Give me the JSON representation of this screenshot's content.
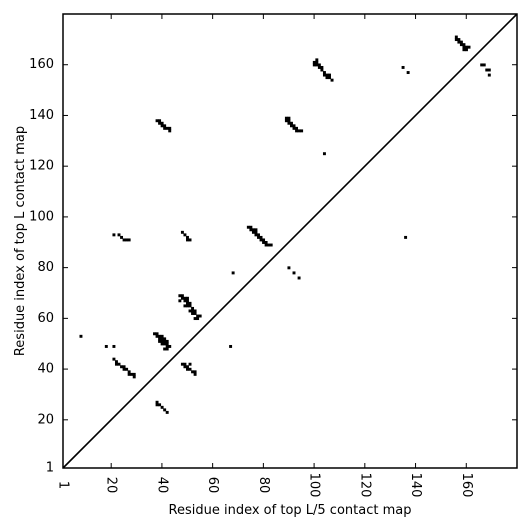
{
  "chart_data": {
    "type": "scatter",
    "title": "",
    "xlabel": "Residue index of top L/5 contact map",
    "ylabel": "Residue index of top L contact map",
    "xlim": [
      1,
      180
    ],
    "ylim": [
      1,
      180
    ],
    "xticks": [
      1,
      20,
      40,
      60,
      80,
      100,
      120,
      140,
      160
    ],
    "yticks": [
      1,
      20,
      40,
      60,
      80,
      100,
      120,
      140,
      160
    ],
    "xtick_labels": [
      "1",
      "20",
      "40",
      "60",
      "80",
      "100",
      "120",
      "140",
      "160"
    ],
    "ytick_labels": [
      "1",
      "20",
      "40",
      "60",
      "80",
      "100",
      "120",
      "140",
      "160"
    ],
    "xtick_rotation": 90,
    "diagonal": true,
    "grid": false,
    "marker": "square",
    "points": [
      [
        8,
        53
      ],
      [
        18,
        49
      ],
      [
        21,
        49
      ],
      [
        21,
        93
      ],
      [
        23,
        93
      ],
      [
        24,
        92
      ],
      [
        25,
        91
      ],
      [
        26,
        91
      ],
      [
        27,
        91
      ],
      [
        21,
        44
      ],
      [
        22,
        43
      ],
      [
        22,
        42
      ],
      [
        23,
        42
      ],
      [
        24,
        41
      ],
      [
        25,
        41
      ],
      [
        25,
        40
      ],
      [
        26,
        40
      ],
      [
        27,
        39
      ],
      [
        27,
        38
      ],
      [
        28,
        38
      ],
      [
        29,
        38
      ],
      [
        29,
        37
      ],
      [
        37,
        54
      ],
      [
        38,
        54
      ],
      [
        38,
        53
      ],
      [
        39,
        53
      ],
      [
        39,
        52
      ],
      [
        40,
        53
      ],
      [
        40,
        52
      ],
      [
        41,
        52
      ],
      [
        39,
        51
      ],
      [
        40,
        51
      ],
      [
        41,
        51
      ],
      [
        40,
        50
      ],
      [
        41,
        50
      ],
      [
        42,
        51
      ],
      [
        42,
        50
      ],
      [
        42,
        49
      ],
      [
        43,
        49
      ],
      [
        41,
        48
      ],
      [
        42,
        48
      ],
      [
        48,
        42
      ],
      [
        49,
        42
      ],
      [
        49,
        41
      ],
      [
        50,
        41
      ],
      [
        50,
        40
      ],
      [
        51,
        40
      ],
      [
        51,
        42
      ],
      [
        52,
        39
      ],
      [
        53,
        39
      ],
      [
        53,
        38
      ],
      [
        38,
        27
      ],
      [
        38,
        26
      ],
      [
        39,
        26
      ],
      [
        40,
        25
      ],
      [
        41,
        24
      ],
      [
        42,
        23
      ],
      [
        38,
        138
      ],
      [
        39,
        138
      ],
      [
        39,
        137
      ],
      [
        40,
        137
      ],
      [
        40,
        136
      ],
      [
        41,
        136
      ],
      [
        41,
        135
      ],
      [
        42,
        135
      ],
      [
        43,
        135
      ],
      [
        43,
        134
      ],
      [
        47,
        69
      ],
      [
        48,
        69
      ],
      [
        48,
        68
      ],
      [
        49,
        68
      ],
      [
        49,
        67
      ],
      [
        50,
        68
      ],
      [
        50,
        67
      ],
      [
        47,
        67
      ],
      [
        50,
        66
      ],
      [
        51,
        66
      ],
      [
        49,
        65
      ],
      [
        50,
        65
      ],
      [
        51,
        65
      ],
      [
        52,
        64
      ],
      [
        51,
        63
      ],
      [
        52,
        63
      ],
      [
        53,
        63
      ],
      [
        52,
        62
      ],
      [
        53,
        62
      ],
      [
        54,
        61
      ],
      [
        53,
        60
      ],
      [
        54,
        60
      ],
      [
        55,
        61
      ],
      [
        48,
        94
      ],
      [
        49,
        93
      ],
      [
        50,
        92
      ],
      [
        50,
        91
      ],
      [
        51,
        91
      ],
      [
        67,
        49
      ],
      [
        68,
        78
      ],
      [
        74,
        96
      ],
      [
        75,
        96
      ],
      [
        75,
        95
      ],
      [
        76,
        95
      ],
      [
        77,
        95
      ],
      [
        77,
        94
      ],
      [
        76,
        94
      ],
      [
        77,
        93
      ],
      [
        78,
        93
      ],
      [
        78,
        92
      ],
      [
        79,
        92
      ],
      [
        79,
        91
      ],
      [
        80,
        91
      ],
      [
        80,
        90
      ],
      [
        81,
        90
      ],
      [
        81,
        89
      ],
      [
        82,
        89
      ],
      [
        83,
        89
      ],
      [
        90,
        80
      ],
      [
        92,
        78
      ],
      [
        94,
        76
      ],
      [
        89,
        139
      ],
      [
        90,
        139
      ],
      [
        89,
        138
      ],
      [
        90,
        138
      ],
      [
        90,
        137
      ],
      [
        91,
        137
      ],
      [
        91,
        136
      ],
      [
        92,
        136
      ],
      [
        92,
        135
      ],
      [
        93,
        135
      ],
      [
        93,
        134
      ],
      [
        94,
        134
      ],
      [
        95,
        134
      ],
      [
        100,
        161
      ],
      [
        101,
        161
      ],
      [
        101,
        160
      ],
      [
        100,
        160
      ],
      [
        101,
        162
      ],
      [
        102,
        160
      ],
      [
        102,
        159
      ],
      [
        103,
        159
      ],
      [
        103,
        158
      ],
      [
        104,
        157
      ],
      [
        104,
        156
      ],
      [
        105,
        156
      ],
      [
        105,
        155
      ],
      [
        106,
        155
      ],
      [
        106,
        156
      ],
      [
        107,
        154
      ],
      [
        104,
        125
      ],
      [
        135,
        159
      ],
      [
        137,
        157
      ],
      [
        136,
        92
      ],
      [
        156,
        171
      ],
      [
        156,
        170
      ],
      [
        157,
        170
      ],
      [
        157,
        169
      ],
      [
        158,
        169
      ],
      [
        158,
        168
      ],
      [
        159,
        168
      ],
      [
        159,
        167
      ],
      [
        160,
        167
      ],
      [
        159,
        166
      ],
      [
        160,
        166
      ],
      [
        161,
        167
      ],
      [
        166,
        160
      ],
      [
        167,
        160
      ],
      [
        168,
        158
      ],
      [
        169,
        158
      ],
      [
        169,
        156
      ]
    ]
  }
}
